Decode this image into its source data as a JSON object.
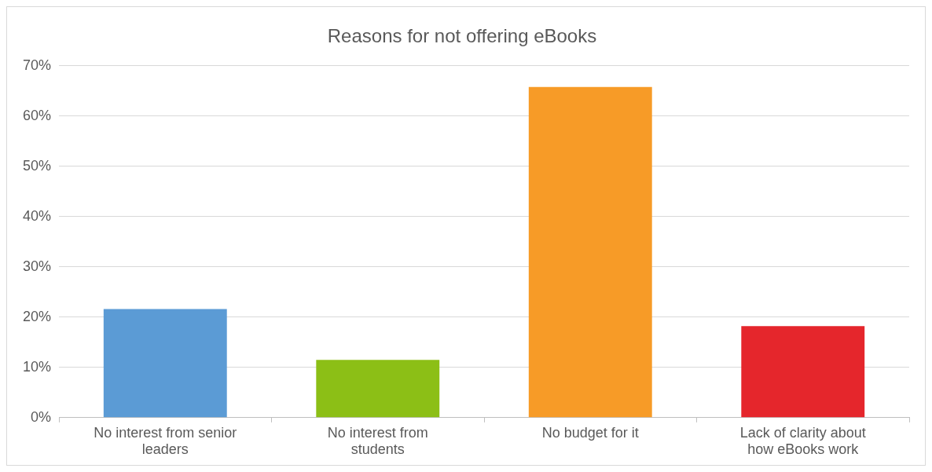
{
  "chart_data": {
    "type": "bar",
    "title": "Reasons for not offering eBooks",
    "categories": [
      "No interest from senior leaders",
      "No interest from students",
      "No budget for it",
      "Lack of clarity about how eBooks work"
    ],
    "values": [
      21.6,
      11.5,
      65.8,
      18.2
    ],
    "colors": [
      "#5b9bd5",
      "#8cbf16",
      "#f79b27",
      "#e5262c"
    ],
    "ylim": [
      0,
      70
    ],
    "yticks": [
      {
        "value": 0,
        "label": "0%"
      },
      {
        "value": 10,
        "label": "10%"
      },
      {
        "value": 20,
        "label": "20%"
      },
      {
        "value": 30,
        "label": "30%"
      },
      {
        "value": 40,
        "label": "40%"
      },
      {
        "value": 50,
        "label": "50%"
      },
      {
        "value": 60,
        "label": "60%"
      },
      {
        "value": 70,
        "label": "70%"
      }
    ],
    "grid": "y",
    "legend": false
  }
}
